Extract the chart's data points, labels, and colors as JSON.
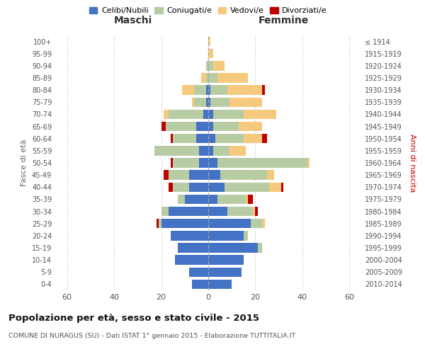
{
  "age_groups": [
    "0-4",
    "5-9",
    "10-14",
    "15-19",
    "20-24",
    "25-29",
    "30-34",
    "35-39",
    "40-44",
    "45-49",
    "50-54",
    "55-59",
    "60-64",
    "65-69",
    "70-74",
    "75-79",
    "80-84",
    "85-89",
    "90-94",
    "95-99",
    "100+"
  ],
  "birth_years": [
    "2010-2014",
    "2005-2009",
    "2000-2004",
    "1995-1999",
    "1990-1994",
    "1985-1989",
    "1980-1984",
    "1975-1979",
    "1970-1974",
    "1965-1969",
    "1960-1964",
    "1955-1959",
    "1950-1954",
    "1945-1949",
    "1940-1944",
    "1935-1939",
    "1930-1934",
    "1925-1929",
    "1920-1924",
    "1915-1919",
    "≤ 1914"
  ],
  "male": {
    "celibi": [
      7,
      8,
      14,
      13,
      16,
      20,
      17,
      10,
      8,
      8,
      4,
      4,
      5,
      5,
      2,
      1,
      1,
      0,
      0,
      0,
      0
    ],
    "coniugati": [
      0,
      0,
      0,
      0,
      0,
      1,
      3,
      3,
      7,
      9,
      11,
      19,
      10,
      13,
      15,
      5,
      5,
      1,
      1,
      0,
      0
    ],
    "vedovi": [
      0,
      0,
      0,
      0,
      0,
      0,
      0,
      0,
      0,
      0,
      0,
      0,
      0,
      0,
      2,
      1,
      5,
      2,
      0,
      0,
      0
    ],
    "divorziati": [
      0,
      0,
      0,
      0,
      0,
      1,
      0,
      0,
      2,
      2,
      1,
      0,
      1,
      2,
      0,
      0,
      0,
      0,
      0,
      0,
      0
    ]
  },
  "female": {
    "nubili": [
      10,
      14,
      15,
      21,
      15,
      18,
      8,
      4,
      7,
      5,
      4,
      2,
      3,
      2,
      2,
      1,
      1,
      0,
      0,
      0,
      0
    ],
    "coniugate": [
      0,
      0,
      0,
      2,
      2,
      5,
      11,
      12,
      19,
      20,
      38,
      7,
      12,
      11,
      13,
      8,
      7,
      4,
      2,
      0,
      0
    ],
    "vedove": [
      0,
      0,
      0,
      0,
      0,
      1,
      1,
      1,
      5,
      3,
      1,
      7,
      8,
      10,
      14,
      14,
      15,
      13,
      5,
      2,
      1
    ],
    "divorziate": [
      0,
      0,
      0,
      0,
      0,
      0,
      1,
      2,
      1,
      0,
      0,
      0,
      2,
      0,
      0,
      0,
      1,
      0,
      0,
      0,
      0
    ]
  },
  "colors": {
    "celibi_nubili": "#4472c4",
    "coniugati": "#b8cca4",
    "vedovi": "#f5c97e",
    "divorziati": "#c00000"
  },
  "title": "Popolazione per età, sesso e stato civile - 2015",
  "subtitle": "COMUNE DI NURAGUS (SU) - Dati ISTAT 1° gennaio 2015 - Elaborazione TUTTITALIA.IT",
  "xlabel_left": "Maschi",
  "xlabel_right": "Femmine",
  "ylabel_left": "Fasce di età",
  "ylabel_right": "Anni di nascita",
  "xlim": 65,
  "legend_labels": [
    "Celibi/Nubili",
    "Coniugati/e",
    "Vedovi/e",
    "Divorziati/e"
  ],
  "bg_color": "#ffffff",
  "grid_color": "#cccccc",
  "bar_height": 0.78
}
